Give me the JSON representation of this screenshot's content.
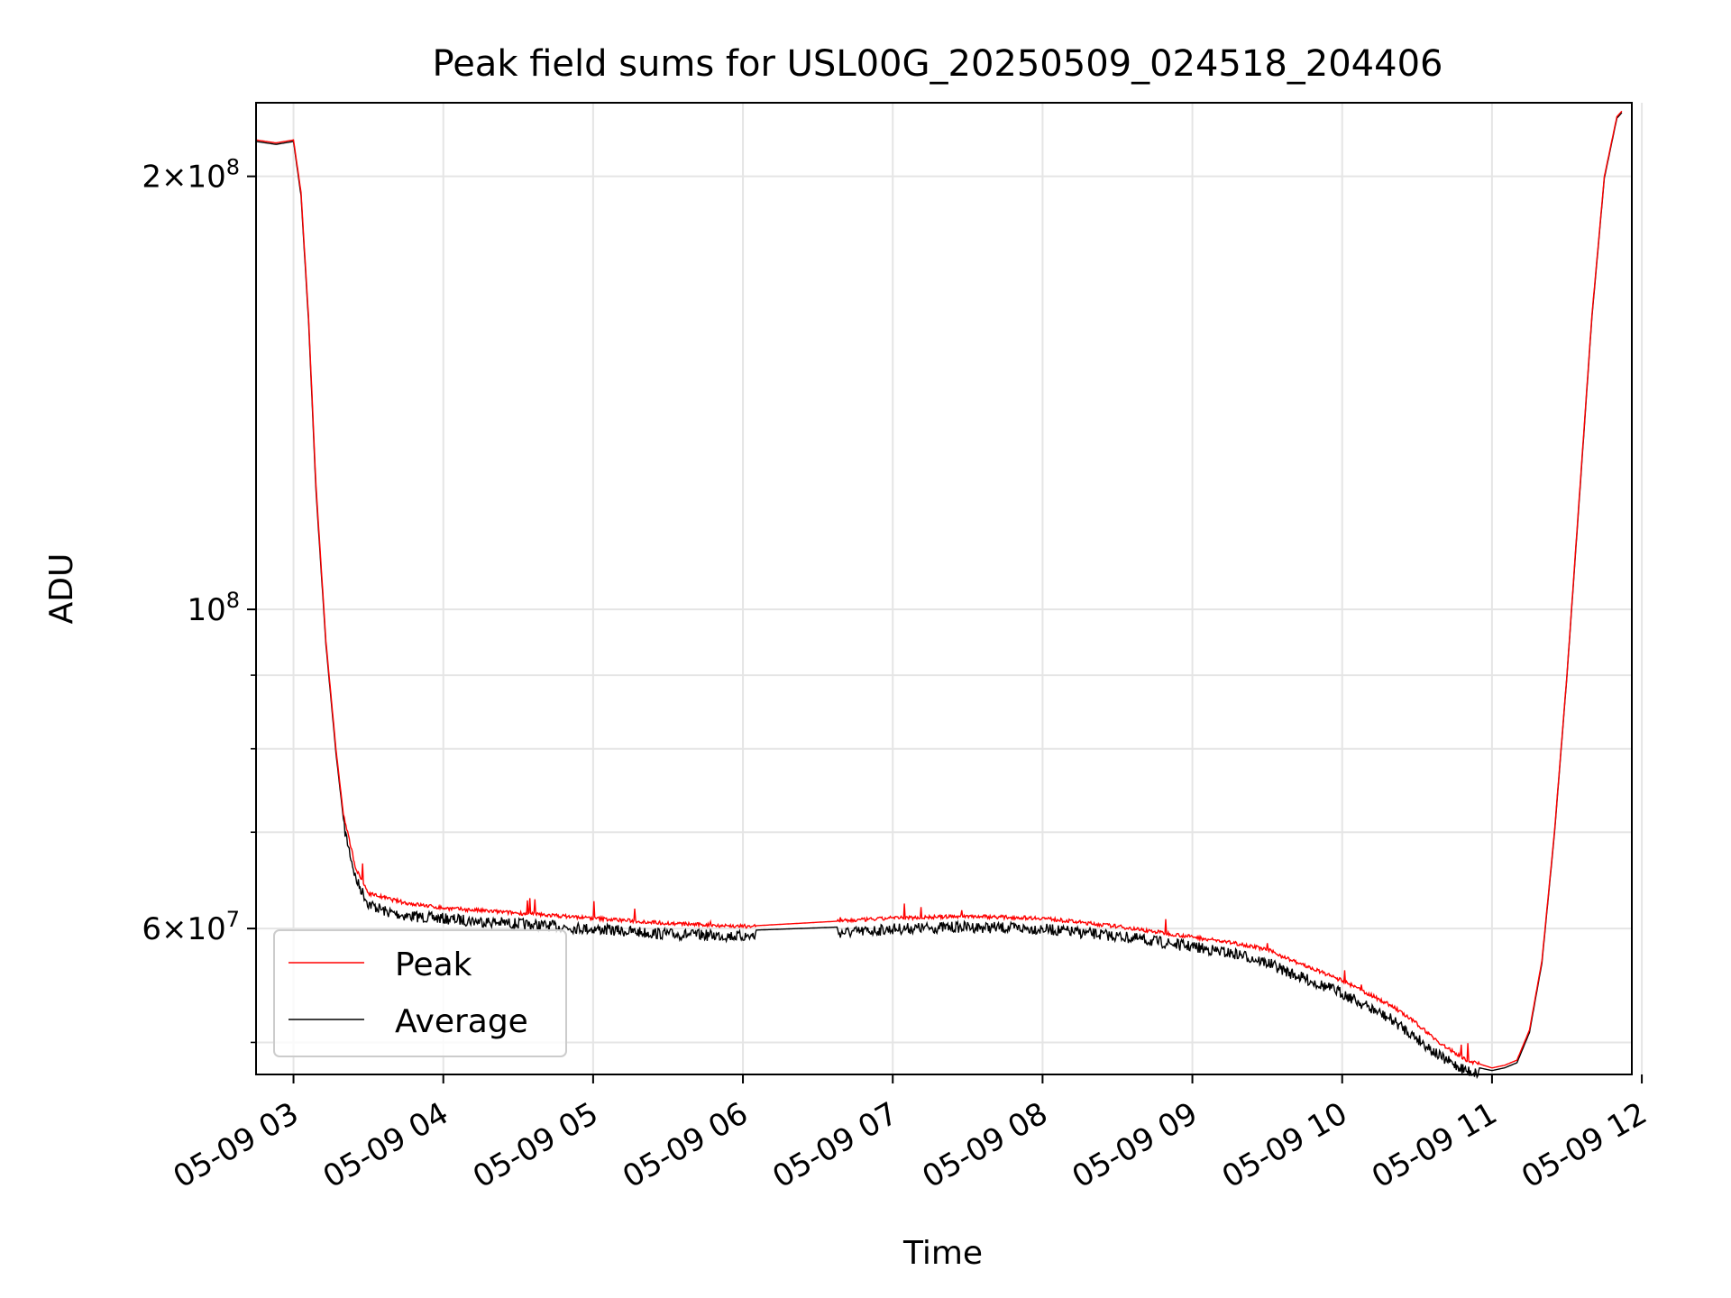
{
  "chart_data": {
    "type": "line",
    "title": "Peak field sums for USL00G_20250509_024518_204406",
    "xlabel": "Time",
    "ylabel": "ADU",
    "yscale": "log",
    "grid": true,
    "legend_position": "lower-left",
    "x_tick_labels": [
      "05-09 03",
      "05-09 04",
      "05-09 05",
      "05-09 06",
      "05-09 07",
      "05-09 08",
      "05-09 09",
      "05-09 10",
      "05-09 11",
      "05-09 12"
    ],
    "x_tick_values": [
      "2025-05-09 03:00",
      "2025-05-09 04:00",
      "2025-05-09 05:00",
      "2025-05-09 06:00",
      "2025-05-09 07:00",
      "2025-05-09 08:00",
      "2025-05-09 09:00",
      "2025-05-09 10:00",
      "2025-05-09 11:00",
      "2025-05-09 12:00"
    ],
    "xlim": [
      "2025-05-09 02:45",
      "2025-05-09 11:56"
    ],
    "ylim": [
      47500000,
      225000000
    ],
    "y_major_ticks": [
      {
        "value": 200000000,
        "mantissa": "2",
        "exponent": "8"
      },
      {
        "value": 100000000,
        "mantissa": "",
        "exponent": "8"
      },
      {
        "value": 60000000,
        "mantissa": "6",
        "exponent": "7"
      }
    ],
    "y_minor_ticks": [
      50000000,
      70000000,
      80000000,
      90000000
    ],
    "series": [
      {
        "name": "Peak",
        "color": "#ff0000",
        "noise": "spiky",
        "x": [
          "2025-05-09 02:45",
          "2025-05-09 02:53",
          "2025-05-09 03:00",
          "2025-05-09 03:03",
          "2025-05-09 03:06",
          "2025-05-09 03:09",
          "2025-05-09 03:13",
          "2025-05-09 03:17",
          "2025-05-09 03:20",
          "2025-05-09 03:25",
          "2025-05-09 03:30",
          "2025-05-09 03:37",
          "2025-05-09 03:45",
          "2025-05-09 04:00",
          "2025-05-09 04:30",
          "2025-05-09 05:00",
          "2025-05-09 05:30",
          "2025-05-09 06:00",
          "2025-05-09 06:45",
          "2025-05-09 07:00",
          "2025-05-09 07:30",
          "2025-05-09 08:00",
          "2025-05-09 08:30",
          "2025-05-09 09:00",
          "2025-05-09 09:20",
          "2025-05-09 09:30",
          "2025-05-09 09:40",
          "2025-05-09 10:00",
          "2025-05-09 10:20",
          "2025-05-09 10:30",
          "2025-05-09 10:40",
          "2025-05-09 10:50",
          "2025-05-09 11:00",
          "2025-05-09 11:05",
          "2025-05-09 11:10",
          "2025-05-09 11:15",
          "2025-05-09 11:20",
          "2025-05-09 11:25",
          "2025-05-09 11:30",
          "2025-05-09 11:35",
          "2025-05-09 11:40",
          "2025-05-09 11:45",
          "2025-05-09 11:50",
          "2025-05-09 11:52"
        ],
        "y": [
          212000000,
          211000000,
          212000000,
          195000000,
          160000000,
          122000000,
          95000000,
          80000000,
          72000000,
          66000000,
          63500000,
          63000000,
          62500000,
          62000000,
          61500000,
          61000000,
          60500000,
          60200000,
          60800000,
          61000000,
          61200000,
          61000000,
          60200000,
          59200000,
          58500000,
          58000000,
          57000000,
          55200000,
          53000000,
          51500000,
          49800000,
          48600000,
          48000000,
          48200000,
          48600000,
          51000000,
          57000000,
          70000000,
          90000000,
          120000000,
          160000000,
          200000000,
          220000000,
          222000000
        ]
      },
      {
        "name": "Average",
        "color": "#000000",
        "noise": "band",
        "x": [
          "2025-05-09 02:45",
          "2025-05-09 02:53",
          "2025-05-09 03:00",
          "2025-05-09 03:03",
          "2025-05-09 03:06",
          "2025-05-09 03:09",
          "2025-05-09 03:13",
          "2025-05-09 03:17",
          "2025-05-09 03:20",
          "2025-05-09 03:25",
          "2025-05-09 03:30",
          "2025-05-09 03:37",
          "2025-05-09 03:45",
          "2025-05-09 04:00",
          "2025-05-09 04:30",
          "2025-05-09 05:00",
          "2025-05-09 05:30",
          "2025-05-09 06:00",
          "2025-05-09 06:45",
          "2025-05-09 07:00",
          "2025-05-09 07:30",
          "2025-05-09 08:00",
          "2025-05-09 08:30",
          "2025-05-09 09:00",
          "2025-05-09 09:20",
          "2025-05-09 09:30",
          "2025-05-09 09:40",
          "2025-05-09 10:00",
          "2025-05-09 10:20",
          "2025-05-09 10:30",
          "2025-05-09 10:40",
          "2025-05-09 10:50",
          "2025-05-09 11:00",
          "2025-05-09 11:05",
          "2025-05-09 11:10",
          "2025-05-09 11:15",
          "2025-05-09 11:20",
          "2025-05-09 11:25",
          "2025-05-09 11:30",
          "2025-05-09 11:35",
          "2025-05-09 11:40",
          "2025-05-09 11:45",
          "2025-05-09 11:50",
          "2025-05-09 11:52"
        ],
        "y": [
          211500000,
          210500000,
          211500000,
          194000000,
          159000000,
          121000000,
          94500000,
          79500000,
          71500000,
          65500000,
          63000000,
          62200000,
          61800000,
          61500000,
          61000000,
          60500000,
          60000000,
          59800000,
          60200000,
          60500000,
          60700000,
          60500000,
          59800000,
          58800000,
          58000000,
          57300000,
          56300000,
          54600000,
          52300000,
          50800000,
          49200000,
          48200000,
          47800000,
          48000000,
          48400000,
          50800000,
          56800000,
          69800000,
          89800000,
          119500000,
          159500000,
          199500000,
          219500000,
          221500000
        ]
      }
    ]
  }
}
